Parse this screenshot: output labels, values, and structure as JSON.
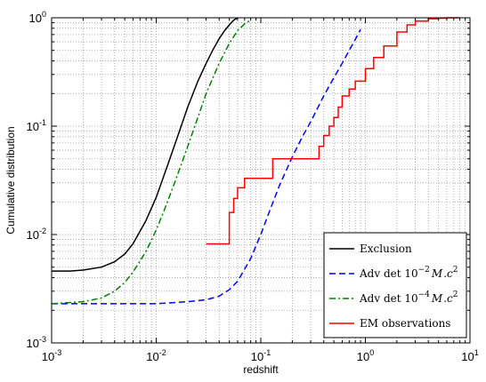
{
  "chart_data": {
    "type": "line",
    "xlabel": "redshift",
    "ylabel": "Cumulative distribution",
    "x_scale": "log",
    "y_scale": "log",
    "xlim": [
      0.001,
      10
    ],
    "ylim": [
      0.001,
      1
    ],
    "grid": true,
    "legend_position": "bottom-right",
    "x_ticks": [
      {
        "base": "10",
        "exp": "-3",
        "value": 0.001
      },
      {
        "base": "10",
        "exp": "-2",
        "value": 0.01
      },
      {
        "base": "10",
        "exp": "-1",
        "value": 0.1
      },
      {
        "base": "10",
        "exp": "0",
        "value": 1
      },
      {
        "base": "10",
        "exp": "1",
        "value": 10
      }
    ],
    "y_ticks": [
      {
        "base": "10",
        "exp": "-3",
        "value": 0.001
      },
      {
        "base": "10",
        "exp": "-2",
        "value": 0.01
      },
      {
        "base": "10",
        "exp": "-1",
        "value": 0.1
      },
      {
        "base": "10",
        "exp": "0",
        "value": 1
      }
    ],
    "series": [
      {
        "name": "Exclusion",
        "color": "#000000",
        "dash": "solid",
        "x": [
          0.001,
          0.0015,
          0.002,
          0.003,
          0.004,
          0.005,
          0.006,
          0.008,
          0.01,
          0.013,
          0.016,
          0.02,
          0.025,
          0.03,
          0.035,
          0.04,
          0.045,
          0.05,
          0.055,
          0.06
        ],
        "y": [
          0.0046,
          0.0046,
          0.0047,
          0.005,
          0.0056,
          0.0066,
          0.0082,
          0.0135,
          0.022,
          0.045,
          0.08,
          0.15,
          0.26,
          0.38,
          0.51,
          0.64,
          0.76,
          0.86,
          0.95,
          1.0
        ]
      },
      {
        "name": "Adv det 10^-2 M c^2",
        "legend_label": {
          "text": "Adv det 10",
          "exp": "−2",
          "suffix": "M",
          "tail": "c",
          "tail_exp": "2"
        },
        "color": "#0000ff",
        "dash": "dashed",
        "x": [
          0.001,
          0.01,
          0.02,
          0.03,
          0.04,
          0.05,
          0.06,
          0.08,
          0.1,
          0.12,
          0.15,
          0.2,
          0.25,
          0.3,
          0.4,
          0.5,
          0.6,
          0.7,
          0.8,
          0.9
        ],
        "y": [
          0.0023,
          0.0023,
          0.0024,
          0.0025,
          0.0027,
          0.0031,
          0.0037,
          0.006,
          0.01,
          0.016,
          0.028,
          0.052,
          0.08,
          0.11,
          0.19,
          0.28,
          0.38,
          0.5,
          0.63,
          0.78
        ]
      },
      {
        "name": "Adv det 10^-4 M c^2",
        "legend_label": {
          "text": "Adv det 10",
          "exp": "−4",
          "suffix": "M",
          "tail": "c",
          "tail_exp": "2"
        },
        "color": "#008000",
        "dash": "dashdot",
        "x": [
          0.001,
          0.002,
          0.003,
          0.004,
          0.005,
          0.006,
          0.008,
          0.01,
          0.012,
          0.015,
          0.02,
          0.025,
          0.03,
          0.04,
          0.05,
          0.06,
          0.07,
          0.08
        ],
        "y": [
          0.0023,
          0.0024,
          0.0026,
          0.003,
          0.0036,
          0.0045,
          0.007,
          0.011,
          0.017,
          0.03,
          0.065,
          0.12,
          0.2,
          0.38,
          0.58,
          0.76,
          0.88,
          0.95
        ]
      },
      {
        "name": "EM observations",
        "color": "#ff0000",
        "dash": "solid",
        "step": true,
        "x": [
          0.03,
          0.05,
          0.055,
          0.06,
          0.07,
          0.09,
          0.13,
          0.25,
          0.36,
          0.4,
          0.45,
          0.5,
          0.55,
          0.6,
          0.7,
          0.8,
          1.0,
          1.2,
          1.5,
          2.0,
          2.5,
          3.0,
          4.0,
          5.0,
          6.0,
          8.0
        ],
        "y": [
          0.0082,
          0.016,
          0.0215,
          0.027,
          0.033,
          0.033,
          0.05,
          0.05,
          0.065,
          0.082,
          0.1,
          0.12,
          0.15,
          0.19,
          0.22,
          0.26,
          0.34,
          0.43,
          0.55,
          0.74,
          0.86,
          0.93,
          0.98,
          0.99,
          1.0,
          1.0
        ]
      }
    ]
  }
}
